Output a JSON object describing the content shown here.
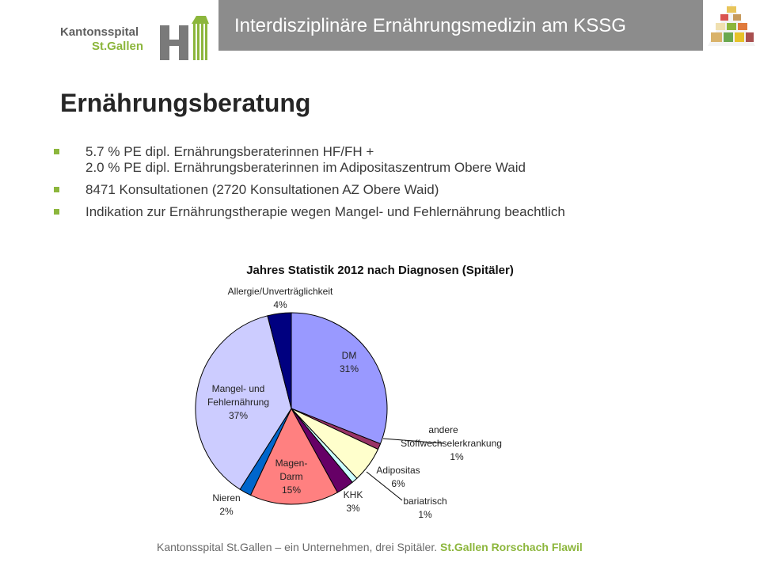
{
  "logo": {
    "line1": "Kantonsspital",
    "line2": "St.Gallen"
  },
  "banner": {
    "title": "Interdisziplinäre Ernährungsmedizin am KSSG"
  },
  "heading": "Ernährungsberatung",
  "bullets": [
    {
      "lines": [
        "5.7 % PE dipl. Ernährungsberaterinnen HF/FH +",
        "2.0 % PE dipl. Ernährungsberaterinnen im Adipositaszentrum Obere Waid"
      ]
    },
    {
      "lines": [
        "8471 Konsultationen (2720 Konsultationen AZ Obere Waid)"
      ]
    },
    {
      "lines": [
        "Indikation zur Ernährungstherapie wegen Mangel- und Fehlernährung beachtlich"
      ]
    }
  ],
  "chart_data": {
    "type": "pie",
    "title": "Jahres Statistik 2012 nach Diagnosen (Spitäler)",
    "slices": [
      {
        "label": [
          "DM"
        ],
        "pct": "31%",
        "value": 31,
        "color": "#9999ff"
      },
      {
        "label": [
          "andere",
          "Stoffwechselerkrankung"
        ],
        "pct": "1%",
        "value": 1,
        "color": "#993366"
      },
      {
        "label": [
          "Adipositas"
        ],
        "pct": "6%",
        "value": 6,
        "color": "#ffffcc"
      },
      {
        "label": [
          "bariatrisch"
        ],
        "pct": "1%",
        "value": 1,
        "color": "#ccffff"
      },
      {
        "label": [
          "KHK"
        ],
        "pct": "3%",
        "value": 3,
        "color": "#660066"
      },
      {
        "label": [
          "Magen-",
          "Darm"
        ],
        "pct": "15%",
        "value": 15,
        "color": "#ff8080"
      },
      {
        "label": [
          "Nieren"
        ],
        "pct": "2%",
        "value": 2,
        "color": "#0066cc"
      },
      {
        "label": [
          "Mangel- und",
          "Fehlernährung"
        ],
        "pct": "37%",
        "value": 37,
        "color": "#ccccff"
      },
      {
        "label": [
          "Allergie/Unverträglichkeit"
        ],
        "pct": "4%",
        "value": 4,
        "color": "#000080"
      }
    ]
  },
  "footer": {
    "text": "Kantonsspital St.Gallen – ein Unternehmen, drei Spitäler.",
    "sites": "St.Gallen  Rorschach  Flawil"
  },
  "colors": {
    "accent_green": "#8cb63c",
    "banner_gray": "#8c8c8c"
  }
}
